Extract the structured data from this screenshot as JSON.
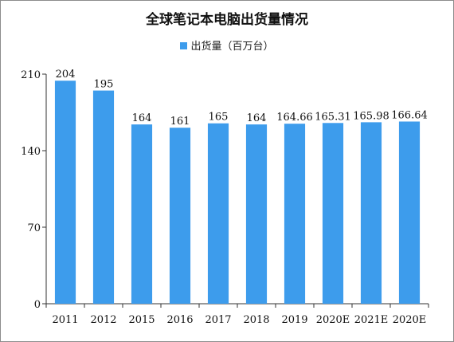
{
  "chart_data": {
    "type": "bar",
    "title": "全球笔记本电脑出货量情况",
    "categories": [
      "2011",
      "2012",
      "2015",
      "2016",
      "2017",
      "2018",
      "2019",
      "2020E",
      "2021E",
      "2020E"
    ],
    "series": [
      {
        "name": "出货量（百万台）",
        "values": [
          204,
          195,
          164,
          161,
          165,
          164,
          164.66,
          165.31,
          165.98,
          166.64
        ],
        "labels": [
          "204",
          "195",
          "164",
          "161",
          "165",
          "164",
          "164.66",
          "165.31",
          "165.98",
          "166.64"
        ],
        "color": "#3d9cec"
      }
    ],
    "yticks": [
      "0",
      "70",
      "140",
      "210"
    ],
    "ylim": [
      0,
      210
    ],
    "grid": false,
    "legend_position": "top"
  }
}
